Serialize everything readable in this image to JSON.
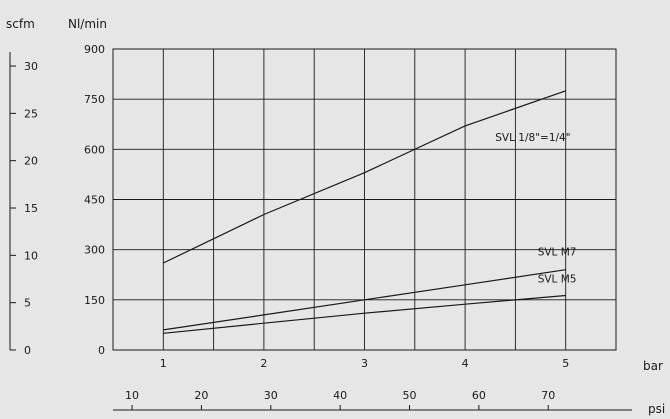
{
  "chart_data": {
    "type": "line",
    "title": "",
    "ylabel": "Nl/min",
    "xlabel": "bar",
    "ylim": [
      0,
      900
    ],
    "xlim": [
      0.5,
      5.5
    ],
    "grid": true,
    "y_ticks": [
      0,
      150,
      300,
      450,
      600,
      750,
      900
    ],
    "x_ticks": [
      1,
      2,
      3,
      4,
      5
    ],
    "x_ticks_minor": [
      0.5,
      1.5,
      2.5,
      3.5,
      4.5,
      5.5
    ],
    "series": [
      {
        "name": "SVL 1/8\"=1/4\"",
        "x": [
          1,
          2,
          3,
          4,
          5
        ],
        "y": [
          260,
          405,
          530,
          670,
          775
        ]
      },
      {
        "name": "SVL M7",
        "x": [
          1,
          2,
          3,
          4,
          5
        ],
        "y": [
          60,
          105,
          150,
          195,
          240
        ]
      },
      {
        "name": "SVL M5",
        "x": [
          1,
          2,
          3,
          4,
          5
        ],
        "y": [
          50,
          80,
          110,
          137,
          163
        ]
      }
    ],
    "secondary_y": {
      "label": "scfm",
      "ticks": [
        0,
        5,
        10,
        15,
        20,
        25,
        30
      ],
      "max": 31.8
    },
    "secondary_x": {
      "label": "psi",
      "ticks": [
        10,
        20,
        30,
        40,
        50,
        60,
        70
      ],
      "bar_per_unit": 0.0689476
    }
  }
}
